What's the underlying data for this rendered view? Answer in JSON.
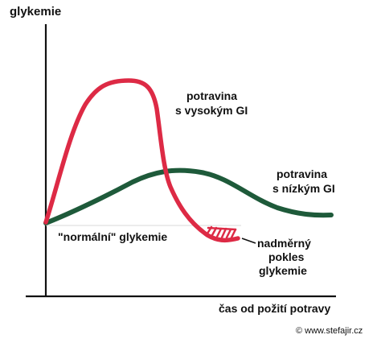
{
  "chart_data": {
    "type": "line",
    "ylabel": "glykemie",
    "xlabel": "čas od požití potravy",
    "annotations": {
      "normal_level": "\"normální\" glykemie",
      "drop": [
        "nadměrný",
        "pokles",
        "glykemie"
      ]
    },
    "series": [
      {
        "name_lines": [
          "potravina",
          "s vysokým GI"
        ],
        "color": "#dd2a45",
        "shape": "fast rise to a high peak, then a steep fall below the normal level"
      },
      {
        "name_lines": [
          "potravina",
          "s nízkým GI"
        ],
        "color": "#1e5a3a",
        "shape": "slow moderate rise, broad hump, gradual decline"
      }
    ],
    "grid": false,
    "legend": "labels next to curves"
  },
  "label_colors": {
    "high_gi": "#e0283f",
    "low_gi": "#1f9a57"
  },
  "footer": {
    "copyright": "© www.stefajir.cz"
  }
}
